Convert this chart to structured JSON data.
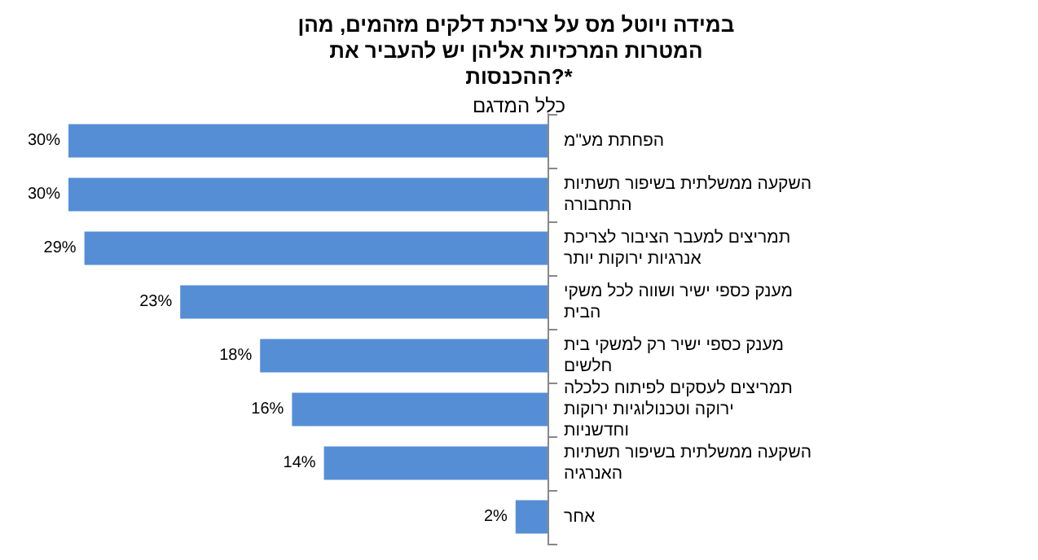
{
  "chart_data": {
    "type": "bar",
    "orientation": "horizontal",
    "title": "במידה ויוטל מס על צריכת דלקים מזהמים, מהן המטרות המרכזיות אליהן יש להעביר את ההכנסות?*",
    "subtitle": "כלל המדגם",
    "categories": [
      "הפחתת מע\"מ",
      "השקעה ממשלתית בשיפור תשתיות התחבורה",
      "תמריצים למעבר הציבור לצריכת אנרגיות ירוקות יותר",
      "מענק כספי ישיר ושווה לכל משקי הבית",
      "מענק כספי ישיר רק למשקי בית חלשים",
      "תמריצים לעסקים לפיתוח כלכלה ירוקה וטכנולוגיות ירוקות וחדשניות",
      "השקעה ממשלתית בשיפור תשתיות האנרגיה",
      "אחר"
    ],
    "values": [
      30,
      30,
      29,
      23,
      18,
      16,
      14,
      2
    ],
    "value_labels": [
      "30%",
      "30%",
      "29%",
      "23%",
      "18%",
      "16%",
      "14%",
      "2%"
    ],
    "color": "#558ed5"
  }
}
